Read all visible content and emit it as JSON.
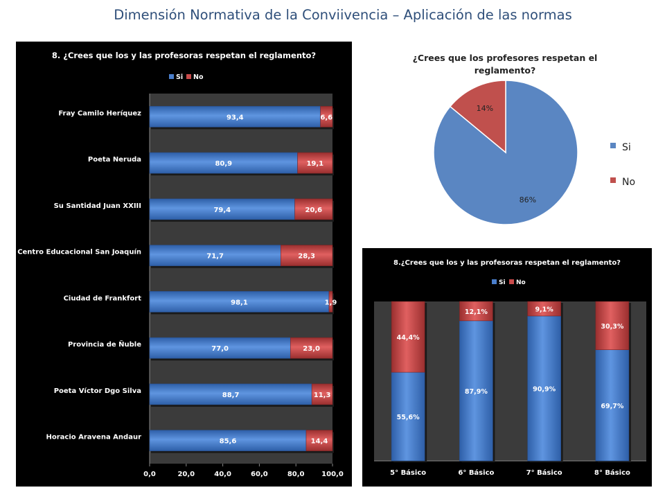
{
  "slide": {
    "title": "Dimensión Normativa de la Conviivencia – Aplicación de las normas"
  },
  "colors": {
    "si": "#4a7ecb",
    "no": "#c94b4b",
    "pie_si": "#5a86c2",
    "pie_no": "#c0504d",
    "title_blue": "#2f4f7a"
  },
  "chart_data": [
    {
      "type": "bar",
      "orientation": "horizontal",
      "stacked": true,
      "title": "8. ¿Crees que los y las profesoras respetan el reglamento?",
      "categories": [
        "Fray Camilo Heríquez",
        "Poeta Neruda",
        "Su Santidad Juan XXIII",
        "Centro Educacional San Joaquín",
        "Ciudad de Frankfort",
        "Provincia de Ñuble",
        "Poeta Víctor Dgo Silva",
        "Horacio Aravena Andaur"
      ],
      "series": [
        {
          "name": "Si",
          "values": [
            93.4,
            80.9,
            79.4,
            71.7,
            98.1,
            77.0,
            88.7,
            85.6
          ],
          "labels": [
            "93,4",
            "80,9",
            "79,4",
            "71,7",
            "98,1",
            "77,0",
            "88,7",
            "85,6"
          ]
        },
        {
          "name": "No",
          "values": [
            6.6,
            19.1,
            20.6,
            28.3,
            1.9,
            23.0,
            11.3,
            14.4
          ],
          "labels": [
            "6,6",
            "19,1",
            "20,6",
            "28,3",
            "1,9",
            "23,0",
            "11,3",
            "14,4"
          ]
        }
      ],
      "xlim": [
        0,
        100
      ],
      "xticks": [
        "0,0",
        "20,0",
        "40,0",
        "60,0",
        "80,0",
        "100,0"
      ],
      "legend": "top"
    },
    {
      "type": "pie",
      "title": "¿Crees que los profesores respetan el reglamento?",
      "title_lines": [
        "¿Crees que los profesores respetan el",
        "reglamento?"
      ],
      "slices": [
        {
          "name": "Si",
          "value": 86,
          "label": "86%"
        },
        {
          "name": "No",
          "value": 14,
          "label": "14%"
        }
      ],
      "legend": "right"
    },
    {
      "type": "bar",
      "orientation": "vertical",
      "stacked": true,
      "title": "8.¿Crees que los y las profesoras respetan el reglamento?",
      "categories": [
        "5° Básico",
        "6° Básico",
        "7° Básico",
        "8° Básico"
      ],
      "series": [
        {
          "name": "Si",
          "values": [
            55.6,
            87.9,
            90.9,
            69.7
          ],
          "labels": [
            "55,6%",
            "87,9%",
            "90,9%",
            "69,7%"
          ]
        },
        {
          "name": "No",
          "values": [
            44.4,
            12.1,
            9.1,
            30.3
          ],
          "labels": [
            "44,4%",
            "12,1%",
            "9,1%",
            "30,3%"
          ]
        }
      ],
      "ylim": [
        0,
        100
      ],
      "legend": "top"
    }
  ]
}
